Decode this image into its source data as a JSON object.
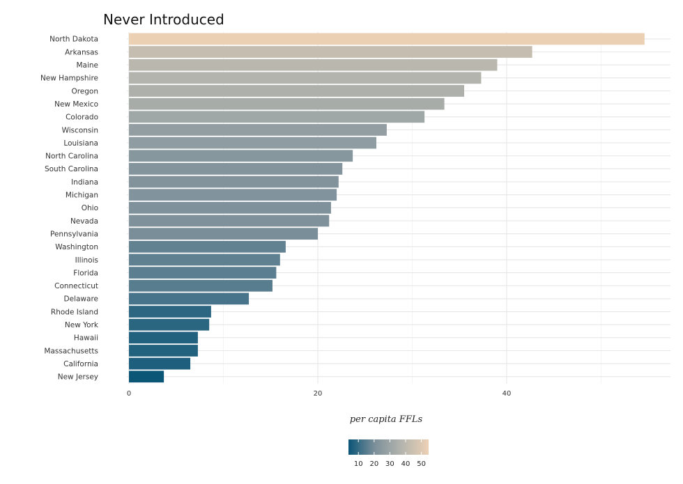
{
  "chart_data": {
    "type": "bar",
    "orientation": "horizontal",
    "title": "Never Introduced",
    "xlabel": "per capita FFLs",
    "ylabel": "",
    "xlim": [
      0,
      57
    ],
    "x_ticks": [
      0,
      20,
      40
    ],
    "grid": true,
    "categories": [
      "North Dakota",
      "Arkansas",
      "Maine",
      "New Hampshire",
      "Oregon",
      "New Mexico",
      "Colorado",
      "Wisconsin",
      "Louisiana",
      "North Carolina",
      "South Carolina",
      "Indiana",
      "Michigan",
      "Ohio",
      "Nevada",
      "Pennsylvania",
      "Washington",
      "Illinois",
      "Florida",
      "Connecticut",
      "Delaware",
      "Rhode Island",
      "New York",
      "Hawaii",
      "Massachusetts",
      "California",
      "New Jersey"
    ],
    "values": [
      54.6,
      42.7,
      39.0,
      37.3,
      35.5,
      33.4,
      31.3,
      27.3,
      26.2,
      23.7,
      22.6,
      22.2,
      22.0,
      21.4,
      21.2,
      20.0,
      16.6,
      16.0,
      15.6,
      15.2,
      12.7,
      8.7,
      8.5,
      7.3,
      7.3,
      6.5,
      3.7
    ],
    "legend": {
      "type": "colorbar",
      "placement": "bottom",
      "range": [
        3.7,
        54.6
      ],
      "ticks": [
        10,
        20,
        30,
        40,
        50
      ],
      "colors": [
        "#0b5577",
        "#7d909a",
        "#b5b5ae",
        "#ecd0b4"
      ]
    }
  }
}
